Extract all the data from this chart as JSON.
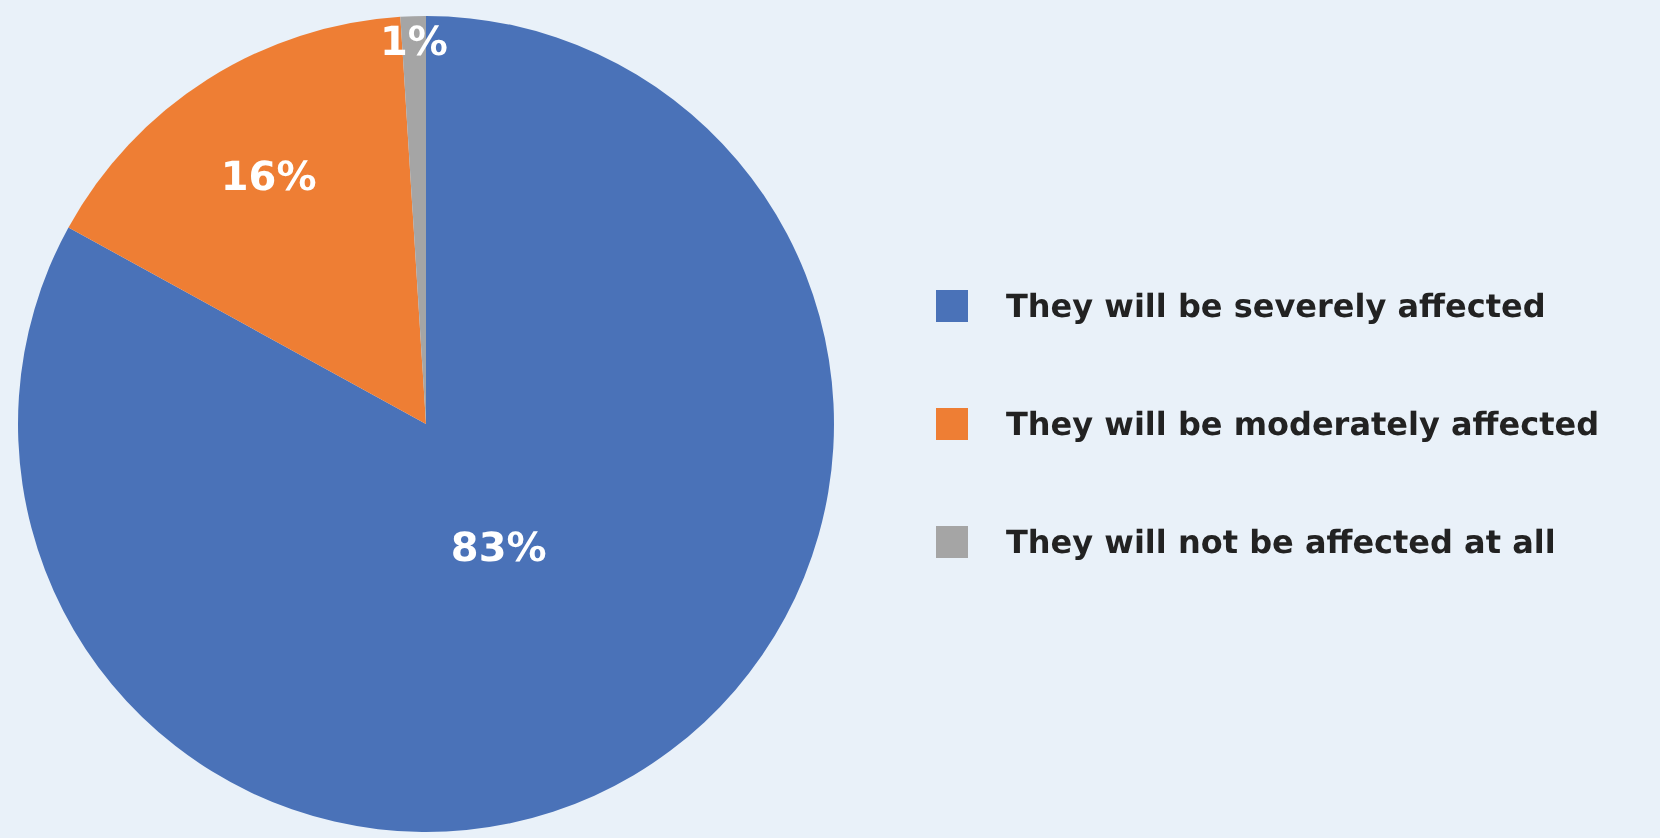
{
  "chart_data": {
    "type": "pie",
    "categories": [
      "They will be severely affected",
      "They will be moderately affected",
      "They will not be affected at all"
    ],
    "values": [
      83,
      16,
      1
    ],
    "colors": [
      "#4a72b8",
      "#ee7e34",
      "#a5a5a5"
    ],
    "value_labels": [
      "83%",
      "16%",
      "1%"
    ],
    "legend": "right"
  }
}
